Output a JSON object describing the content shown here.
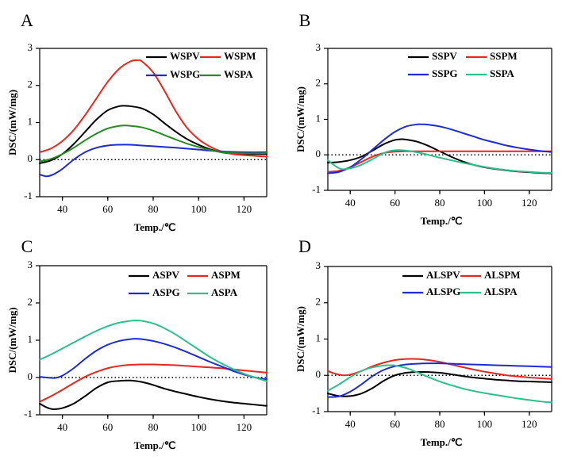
{
  "colors": {
    "black": "#000000",
    "red": "#e8251e",
    "blue": "#1f2ad6",
    "green": "#228b22",
    "teal": "#2dbf8a"
  },
  "chart_data": [
    {
      "type": "line",
      "panel": "A",
      "xlabel": "Temp./℃",
      "ylabel": "DSC/(mW/mg)",
      "xlim": [
        30,
        130
      ],
      "ylim": [
        -1,
        3
      ],
      "xticks": [
        "40",
        "60",
        "80",
        "100",
        "120"
      ],
      "yticks": [
        "-1",
        "0",
        "1",
        "2",
        "3"
      ],
      "legend_position": "top-right",
      "series": [
        {
          "name": "WSPV",
          "color": "#000000",
          "x": [
            30,
            35,
            40,
            45,
            50,
            55,
            60,
            65,
            68,
            70,
            75,
            80,
            85,
            90,
            95,
            100,
            105,
            110,
            115,
            120,
            125,
            130
          ],
          "y": [
            -0.1,
            -0.02,
            0.15,
            0.42,
            0.75,
            1.08,
            1.33,
            1.44,
            1.45,
            1.44,
            1.38,
            1.22,
            0.98,
            0.75,
            0.55,
            0.4,
            0.28,
            0.2,
            0.16,
            0.15,
            0.15,
            0.15
          ]
        },
        {
          "name": "WSPM",
          "color": "#e8251e",
          "x": [
            30,
            35,
            40,
            45,
            50,
            55,
            60,
            65,
            70,
            73,
            75,
            80,
            85,
            90,
            95,
            100,
            105,
            110,
            115,
            120,
            125,
            130
          ],
          "y": [
            0.2,
            0.3,
            0.5,
            0.8,
            1.2,
            1.65,
            2.1,
            2.45,
            2.65,
            2.68,
            2.65,
            2.35,
            1.85,
            1.3,
            0.85,
            0.55,
            0.35,
            0.22,
            0.15,
            0.12,
            0.1,
            0.08
          ]
        },
        {
          "name": "WSPG",
          "color": "#1f2ad6",
          "x": [
            30,
            33,
            36,
            40,
            45,
            50,
            55,
            60,
            65,
            70,
            75,
            80,
            90,
            100,
            110,
            120,
            130
          ],
          "y": [
            -0.4,
            -0.45,
            -0.4,
            -0.25,
            0.0,
            0.2,
            0.32,
            0.38,
            0.4,
            0.4,
            0.38,
            0.36,
            0.32,
            0.27,
            0.22,
            0.2,
            0.2
          ]
        },
        {
          "name": "WSPA",
          "color": "#228b22",
          "x": [
            30,
            35,
            40,
            45,
            50,
            55,
            60,
            65,
            68,
            70,
            75,
            80,
            85,
            90,
            95,
            100,
            105,
            110,
            115,
            120,
            125,
            130
          ],
          "y": [
            -0.05,
            0.02,
            0.15,
            0.32,
            0.52,
            0.7,
            0.84,
            0.91,
            0.92,
            0.91,
            0.87,
            0.78,
            0.66,
            0.54,
            0.43,
            0.34,
            0.26,
            0.2,
            0.18,
            0.17,
            0.17,
            0.18
          ]
        }
      ]
    },
    {
      "type": "line",
      "panel": "B",
      "xlabel": "Temp./℃",
      "ylabel": "DSC/(mW/mg)",
      "xlim": [
        30,
        130
      ],
      "ylim": [
        -1,
        3
      ],
      "xticks": [
        "40",
        "60",
        "80",
        "100",
        "120"
      ],
      "yticks": [
        "-1",
        "0",
        "1",
        "2",
        "3"
      ],
      "legend_position": "top-right",
      "series": [
        {
          "name": "SSPV",
          "color": "#000000",
          "x": [
            30,
            35,
            40,
            45,
            50,
            55,
            60,
            63,
            65,
            70,
            75,
            80,
            85,
            90,
            95,
            100,
            105,
            110,
            115,
            120,
            125,
            130
          ],
          "y": [
            -0.22,
            -0.2,
            -0.15,
            -0.05,
            0.12,
            0.3,
            0.42,
            0.44,
            0.43,
            0.37,
            0.25,
            0.1,
            -0.05,
            -0.18,
            -0.28,
            -0.35,
            -0.4,
            -0.44,
            -0.47,
            -0.49,
            -0.51,
            -0.52
          ]
        },
        {
          "name": "SSPM",
          "color": "#e8251e",
          "x": [
            30,
            35,
            40,
            45,
            50,
            55,
            60,
            65,
            70,
            75,
            80,
            90,
            100,
            110,
            120,
            130
          ],
          "y": [
            -0.48,
            -0.45,
            -0.35,
            -0.2,
            -0.05,
            0.05,
            0.09,
            0.1,
            0.1,
            0.1,
            0.1,
            0.1,
            0.1,
            0.1,
            0.1,
            0.1
          ]
        },
        {
          "name": "SSPG",
          "color": "#1f2ad6",
          "x": [
            30,
            35,
            40,
            45,
            50,
            55,
            60,
            65,
            70,
            72,
            75,
            80,
            85,
            90,
            95,
            100,
            105,
            110,
            115,
            120,
            125,
            130
          ],
          "y": [
            -0.52,
            -0.48,
            -0.35,
            -0.12,
            0.15,
            0.42,
            0.65,
            0.8,
            0.86,
            0.86,
            0.85,
            0.8,
            0.72,
            0.62,
            0.52,
            0.42,
            0.34,
            0.26,
            0.2,
            0.15,
            0.11,
            0.08
          ]
        },
        {
          "name": "SSPA",
          "color": "#2dbf8a",
          "x": [
            30,
            33,
            36,
            40,
            45,
            50,
            55,
            60,
            65,
            70,
            75,
            80,
            85,
            90,
            95,
            100,
            105,
            110,
            115,
            120,
            125,
            130
          ],
          "y": [
            -0.15,
            -0.3,
            -0.4,
            -0.38,
            -0.28,
            -0.12,
            0.05,
            0.13,
            0.12,
            0.07,
            0.0,
            -0.08,
            -0.15,
            -0.22,
            -0.28,
            -0.34,
            -0.39,
            -0.43,
            -0.46,
            -0.48,
            -0.5,
            -0.51
          ]
        }
      ]
    },
    {
      "type": "line",
      "panel": "C",
      "xlabel": "Temp./℃",
      "ylabel": "DSC/(mW/mg)",
      "xlim": [
        30,
        130
      ],
      "ylim": [
        -1,
        3
      ],
      "xticks": [
        "40",
        "60",
        "80",
        "100",
        "120"
      ],
      "yticks": [
        "-1",
        "0",
        "1",
        "2",
        "3"
      ],
      "legend_position": "top-right",
      "series": [
        {
          "name": "ASPV",
          "color": "#000000",
          "x": [
            30,
            33,
            36,
            40,
            45,
            50,
            55,
            60,
            65,
            70,
            75,
            80,
            85,
            90,
            95,
            100,
            105,
            110,
            115,
            120,
            125,
            130
          ],
          "y": [
            -0.7,
            -0.8,
            -0.85,
            -0.82,
            -0.7,
            -0.5,
            -0.28,
            -0.13,
            -0.09,
            -0.08,
            -0.12,
            -0.2,
            -0.3,
            -0.38,
            -0.45,
            -0.52,
            -0.58,
            -0.63,
            -0.67,
            -0.7,
            -0.73,
            -0.76
          ]
        },
        {
          "name": "ASPM",
          "color": "#e8251e",
          "x": [
            30,
            35,
            40,
            45,
            50,
            55,
            60,
            65,
            70,
            75,
            80,
            85,
            90,
            95,
            100,
            105,
            110,
            115,
            120,
            125,
            130
          ],
          "y": [
            -0.65,
            -0.5,
            -0.33,
            -0.15,
            0.02,
            0.15,
            0.25,
            0.31,
            0.34,
            0.35,
            0.35,
            0.34,
            0.33,
            0.31,
            0.29,
            0.27,
            0.25,
            0.22,
            0.19,
            0.16,
            0.13
          ]
        },
        {
          "name": "ASPG",
          "color": "#1f2ad6",
          "x": [
            30,
            33,
            37,
            40,
            45,
            50,
            55,
            60,
            65,
            70,
            72,
            75,
            80,
            85,
            90,
            95,
            100,
            105,
            110,
            115,
            120,
            125,
            130
          ],
          "y": [
            0.02,
            0.0,
            -0.01,
            0.05,
            0.25,
            0.5,
            0.72,
            0.88,
            0.98,
            1.03,
            1.04,
            1.03,
            0.98,
            0.9,
            0.8,
            0.68,
            0.55,
            0.42,
            0.3,
            0.18,
            0.08,
            0.0,
            -0.05
          ]
        },
        {
          "name": "ASPA",
          "color": "#2dbf8a",
          "x": [
            30,
            35,
            40,
            45,
            50,
            55,
            60,
            65,
            70,
            72,
            75,
            80,
            85,
            90,
            95,
            100,
            105,
            110,
            115,
            120,
            125,
            130
          ],
          "y": [
            0.48,
            0.62,
            0.78,
            0.94,
            1.1,
            1.25,
            1.38,
            1.47,
            1.52,
            1.53,
            1.52,
            1.45,
            1.32,
            1.15,
            0.95,
            0.75,
            0.55,
            0.38,
            0.23,
            0.1,
            0.0,
            -0.1
          ]
        }
      ]
    },
    {
      "type": "line",
      "panel": "D",
      "xlabel": "Temp./℃",
      "ylabel": "DSC/(mW/mg)",
      "xlim": [
        30,
        130
      ],
      "ylim": [
        -1,
        3
      ],
      "xticks": [
        "40",
        "60",
        "80",
        "100",
        "120"
      ],
      "yticks": [
        "-1",
        "0",
        "1",
        "2",
        "3"
      ],
      "legend_position": "top-right",
      "series": [
        {
          "name": "ALSPV",
          "color": "#000000",
          "x": [
            30,
            35,
            40,
            45,
            50,
            55,
            60,
            65,
            70,
            75,
            80,
            85,
            90,
            95,
            100,
            105,
            110,
            115,
            120,
            125,
            130
          ],
          "y": [
            -0.5,
            -0.57,
            -0.57,
            -0.5,
            -0.35,
            -0.15,
            0.0,
            0.07,
            0.09,
            0.09,
            0.07,
            0.03,
            -0.02,
            -0.06,
            -0.09,
            -0.12,
            -0.14,
            -0.16,
            -0.17,
            -0.18,
            -0.19
          ]
        },
        {
          "name": "ALSPM",
          "color": "#e8251e",
          "x": [
            30,
            33,
            37,
            40,
            45,
            50,
            55,
            60,
            65,
            70,
            75,
            80,
            85,
            90,
            95,
            100,
            105,
            110,
            115,
            120,
            125,
            130
          ],
          "y": [
            0.12,
            0.05,
            0.0,
            0.02,
            0.12,
            0.25,
            0.35,
            0.42,
            0.45,
            0.45,
            0.42,
            0.37,
            0.3,
            0.23,
            0.16,
            0.1,
            0.05,
            0.0,
            -0.03,
            -0.06,
            -0.08,
            -0.1
          ]
        },
        {
          "name": "ALSPG",
          "color": "#1f2ad6",
          "x": [
            30,
            35,
            40,
            45,
            50,
            55,
            60,
            65,
            70,
            75,
            80,
            90,
            100,
            110,
            120,
            130
          ],
          "y": [
            -0.6,
            -0.58,
            -0.45,
            -0.25,
            -0.02,
            0.15,
            0.25,
            0.3,
            0.32,
            0.33,
            0.33,
            0.31,
            0.29,
            0.27,
            0.25,
            0.23
          ]
        },
        {
          "name": "ALSPA",
          "color": "#2dbf8a",
          "x": [
            30,
            35,
            40,
            45,
            50,
            55,
            58,
            60,
            65,
            70,
            75,
            80,
            85,
            90,
            95,
            100,
            105,
            110,
            115,
            120,
            125,
            130
          ],
          "y": [
            -0.42,
            -0.25,
            -0.05,
            0.12,
            0.22,
            0.27,
            0.28,
            0.27,
            0.2,
            0.08,
            -0.05,
            -0.17,
            -0.27,
            -0.36,
            -0.43,
            -0.49,
            -0.54,
            -0.59,
            -0.64,
            -0.68,
            -0.72,
            -0.75
          ]
        }
      ]
    }
  ]
}
